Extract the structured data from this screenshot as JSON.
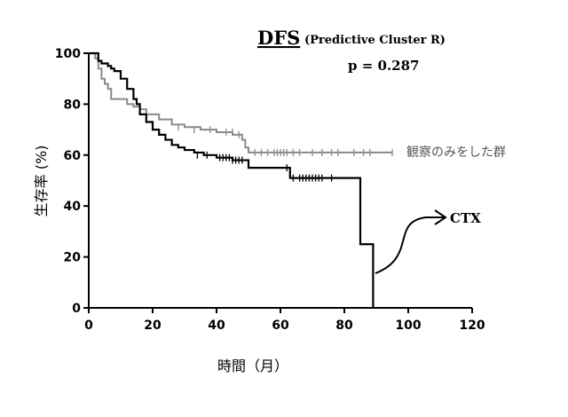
{
  "chart_data": {
    "type": "line",
    "title": "DFS",
    "subtitle": "(Predictive Cluster R)",
    "annotation_pvalue": "p = 0.287",
    "xlabel": "時間（月）",
    "ylabel": "生存率 (%)",
    "xlim": [
      0,
      120
    ],
    "ylim": [
      0,
      100
    ],
    "xticks": [
      0,
      20,
      40,
      60,
      80,
      100,
      120
    ],
    "yticks": [
      0,
      20,
      40,
      60,
      80,
      100
    ],
    "series": [
      {
        "name": "観察のみをした群",
        "color": "#8a8a8a",
        "x": [
          0,
          2,
          3,
          4,
          5,
          6,
          7,
          10,
          12,
          14,
          16,
          18,
          22,
          26,
          30,
          35,
          40,
          45,
          48,
          49,
          50,
          95
        ],
        "y": [
          100,
          98,
          94,
          90,
          88,
          86,
          82,
          82,
          80,
          79,
          78,
          76,
          74,
          72,
          71,
          70,
          69,
          68,
          66,
          63,
          61,
          61
        ],
        "censor_x": [
          28,
          33,
          38,
          43,
          45,
          47,
          52,
          54,
          56,
          58,
          59,
          60,
          61,
          62,
          64,
          66,
          70,
          73,
          76,
          78,
          83,
          86,
          88,
          95
        ],
        "censor_y": [
          71,
          70,
          70,
          69,
          69,
          68,
          61,
          61,
          61,
          61,
          61,
          61,
          61,
          61,
          61,
          61,
          61,
          61,
          61,
          61,
          61,
          61,
          61,
          61
        ]
      },
      {
        "name": "CTX",
        "color": "#000000",
        "x": [
          0,
          3,
          4,
          6,
          7,
          8,
          10,
          12,
          14,
          15,
          16,
          18,
          20,
          22,
          24,
          26,
          28,
          30,
          33,
          36,
          40,
          45,
          50,
          63,
          84,
          85,
          89,
          89
        ],
        "y": [
          100,
          97,
          96,
          95,
          94,
          93,
          90,
          86,
          82,
          80,
          76,
          73,
          70,
          68,
          66,
          64,
          63,
          62,
          61,
          60,
          59,
          58,
          55,
          51,
          51,
          25,
          25,
          0
        ],
        "censor_x": [
          34,
          37,
          41,
          42,
          43,
          44,
          45,
          46,
          47,
          48,
          62,
          64,
          66,
          67,
          68,
          69,
          70,
          71,
          72,
          73,
          76
        ],
        "censor_y": [
          60,
          60,
          59,
          59,
          59,
          59,
          58,
          58,
          58,
          58,
          55,
          51,
          51,
          51,
          51,
          51,
          51,
          51,
          51,
          51,
          51
        ]
      }
    ],
    "legend_labels": [
      "観察のみをした群",
      "CTX"
    ]
  }
}
